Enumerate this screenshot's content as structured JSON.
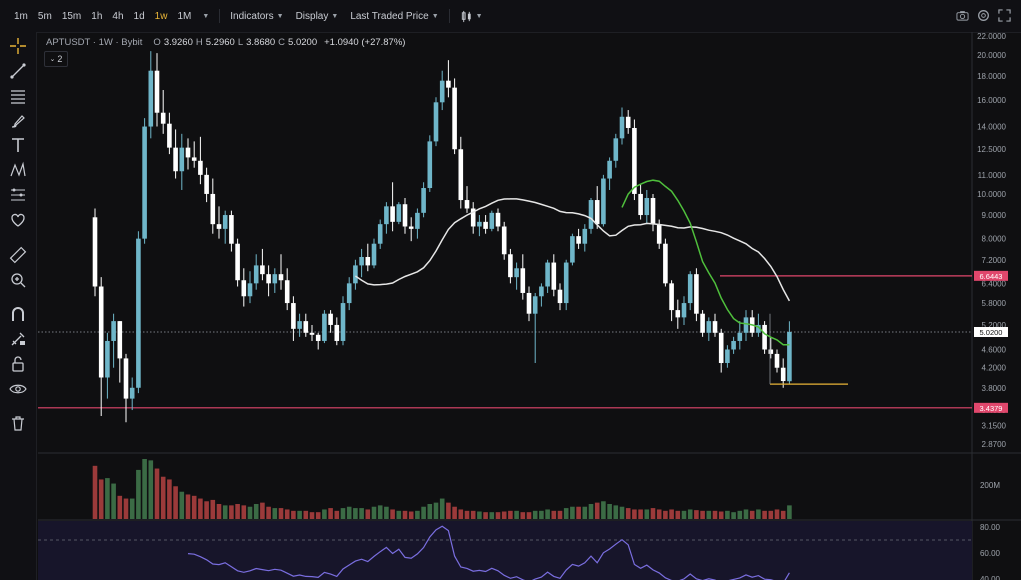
{
  "toolbar_top": {
    "timeframes": [
      "1m",
      "5m",
      "15m",
      "1h",
      "4h",
      "1d",
      "1w",
      "1M"
    ],
    "active_timeframe": "1w",
    "indicators_label": "Indicators",
    "display_label": "Display",
    "price_mode_label": "Last Traded Price"
  },
  "legend": {
    "symbol": "APTUSDT · 1W · Bybit",
    "open_key": "O",
    "open": "3.9260",
    "high_key": "H",
    "high": "5.2960",
    "low_key": "L",
    "low": "3.8680",
    "close_key": "C",
    "close": "5.0200",
    "change": "+1.0940 (+27.87%)",
    "collapsed_count": "2"
  },
  "colors": {
    "background": "#0f0f11",
    "up": "#6fb6c9",
    "down": "#ffffff",
    "vol_up": "#3b6b45",
    "vol_down": "#9b3a3a",
    "level_line": "#e0476c",
    "ma_fast": "#4fbf3c",
    "ma_slow": "#e6e6e6",
    "rsi": "#7a6ee0",
    "accent": "#e8b437"
  },
  "price_axis": {
    "labels": [
      "22.0000",
      "20.0000",
      "18.0000",
      "16.0000",
      "14.0000",
      "12.5000",
      "11.0000",
      "10.0000",
      "9.0000",
      "8.0000",
      "7.2000",
      "6.4000",
      "5.8000",
      "5.2000",
      "4.6000",
      "4.2000",
      "3.8000",
      "3.4000",
      "3.1500",
      "2.8700"
    ],
    "current_price": "5.0200",
    "level_upper": "6.6443",
    "level_lower": "3.4379"
  },
  "volume_axis": {
    "label": "200M"
  },
  "rsi_axis": {
    "labels": [
      "80.00",
      "60.00",
      "40.00"
    ]
  },
  "chart_data": {
    "type": "candlestick",
    "symbol": "APTUSDT",
    "interval": "1W",
    "scale": "log",
    "candles": [
      [
        8.9,
        9.3,
        6.0,
        6.3
      ],
      [
        6.3,
        6.6,
        3.3,
        4.0
      ],
      [
        4.0,
        5.0,
        3.6,
        4.8
      ],
      [
        4.8,
        5.5,
        4.2,
        5.3
      ],
      [
        5.3,
        5.3,
        3.9,
        4.4
      ],
      [
        4.4,
        4.5,
        3.2,
        3.6
      ],
      [
        3.6,
        4.0,
        3.4,
        3.8
      ],
      [
        3.8,
        8.3,
        3.7,
        8.0
      ],
      [
        8.0,
        14.6,
        7.8,
        14.0
      ],
      [
        14.0,
        20.4,
        13.2,
        18.5
      ],
      [
        18.5,
        20.2,
        14.0,
        15.0
      ],
      [
        15.0,
        16.8,
        13.5,
        14.2
      ],
      [
        14.2,
        15.0,
        12.2,
        12.6
      ],
      [
        12.6,
        13.8,
        10.8,
        11.2
      ],
      [
        11.2,
        13.5,
        10.2,
        12.6
      ],
      [
        12.6,
        13.2,
        11.3,
        12.0
      ],
      [
        12.0,
        13.0,
        11.4,
        11.8
      ],
      [
        11.8,
        13.3,
        10.5,
        11.0
      ],
      [
        11.0,
        11.4,
        9.6,
        10.0
      ],
      [
        10.0,
        10.8,
        8.2,
        8.6
      ],
      [
        8.6,
        9.4,
        8.0,
        8.4
      ],
      [
        8.4,
        9.2,
        7.8,
        9.0
      ],
      [
        9.0,
        9.2,
        7.5,
        7.8
      ],
      [
        7.8,
        8.0,
        6.3,
        6.5
      ],
      [
        6.5,
        6.9,
        5.7,
        6.0
      ],
      [
        6.0,
        6.8,
        5.8,
        6.4
      ],
      [
        6.4,
        7.4,
        6.2,
        7.0
      ],
      [
        7.0,
        7.6,
        6.5,
        6.7
      ],
      [
        6.7,
        7.0,
        6.0,
        6.4
      ],
      [
        6.4,
        6.9,
        6.1,
        6.7
      ],
      [
        6.7,
        7.4,
        6.2,
        6.5
      ],
      [
        6.5,
        6.9,
        5.6,
        5.8
      ],
      [
        5.8,
        6.0,
        4.8,
        5.1
      ],
      [
        5.1,
        5.5,
        4.9,
        5.3
      ],
      [
        5.3,
        5.5,
        4.9,
        5.0
      ],
      [
        5.0,
        5.2,
        4.8,
        4.95
      ],
      [
        4.95,
        5.0,
        4.6,
        4.8
      ],
      [
        4.8,
        5.6,
        4.75,
        5.5
      ],
      [
        5.5,
        5.6,
        5.0,
        5.2
      ],
      [
        5.2,
        5.4,
        4.7,
        4.8
      ],
      [
        4.8,
        6.0,
        4.7,
        5.8
      ],
      [
        5.8,
        6.6,
        5.6,
        6.4
      ],
      [
        6.4,
        7.2,
        6.2,
        7.0
      ],
      [
        7.0,
        7.6,
        6.6,
        7.3
      ],
      [
        7.3,
        7.8,
        6.8,
        7.0
      ],
      [
        7.0,
        8.0,
        6.9,
        7.8
      ],
      [
        7.8,
        8.8,
        7.6,
        8.6
      ],
      [
        8.6,
        9.6,
        8.2,
        9.4
      ],
      [
        9.4,
        10.6,
        8.3,
        8.7
      ],
      [
        8.7,
        9.6,
        8.6,
        9.5
      ],
      [
        9.5,
        9.8,
        8.2,
        8.5
      ],
      [
        8.5,
        8.9,
        7.9,
        8.4
      ],
      [
        8.4,
        9.3,
        8.0,
        9.1
      ],
      [
        9.1,
        10.6,
        8.9,
        10.3
      ],
      [
        10.3,
        13.4,
        10.1,
        13.0
      ],
      [
        13.0,
        16.2,
        12.7,
        15.8
      ],
      [
        15.8,
        18.5,
        15.2,
        17.6
      ],
      [
        17.6,
        19.5,
        16.2,
        17.0
      ],
      [
        17.0,
        17.8,
        12.2,
        12.5
      ],
      [
        12.5,
        13.3,
        9.3,
        9.7
      ],
      [
        9.7,
        10.4,
        9.1,
        9.3
      ],
      [
        9.3,
        9.6,
        8.2,
        8.5
      ],
      [
        8.5,
        9.0,
        8.1,
        8.7
      ],
      [
        8.7,
        9.0,
        8.2,
        8.4
      ],
      [
        8.4,
        9.2,
        8.3,
        9.1
      ],
      [
        9.1,
        9.3,
        8.3,
        8.5
      ],
      [
        8.5,
        8.7,
        7.2,
        7.4
      ],
      [
        7.4,
        7.6,
        6.4,
        6.6
      ],
      [
        6.6,
        7.1,
        6.2,
        6.9
      ],
      [
        6.9,
        7.4,
        5.9,
        6.1
      ],
      [
        6.1,
        6.3,
        5.3,
        5.5
      ],
      [
        5.5,
        6.1,
        4.3,
        6.0
      ],
      [
        6.0,
        6.4,
        5.7,
        6.3
      ],
      [
        6.3,
        7.2,
        6.1,
        7.1
      ],
      [
        7.1,
        7.4,
        6.0,
        6.2
      ],
      [
        6.2,
        6.4,
        5.6,
        5.8
      ],
      [
        5.8,
        7.2,
        5.6,
        7.1
      ],
      [
        7.1,
        8.2,
        7.0,
        8.1
      ],
      [
        8.1,
        8.4,
        7.6,
        7.8
      ],
      [
        7.8,
        8.6,
        7.5,
        8.4
      ],
      [
        8.4,
        9.8,
        8.2,
        9.7
      ],
      [
        9.7,
        10.4,
        8.4,
        8.6
      ],
      [
        8.6,
        11.0,
        8.5,
        10.8
      ],
      [
        10.8,
        12.0,
        10.2,
        11.8
      ],
      [
        11.8,
        13.5,
        11.4,
        13.2
      ],
      [
        13.2,
        15.4,
        12.8,
        14.7
      ],
      [
        14.7,
        15.2,
        13.5,
        13.9
      ],
      [
        13.9,
        14.5,
        9.7,
        10.0
      ],
      [
        10.0,
        10.5,
        8.8,
        9.0
      ],
      [
        9.0,
        10.2,
        8.6,
        9.8
      ],
      [
        9.8,
        10.0,
        8.3,
        8.6
      ],
      [
        8.6,
        8.8,
        7.6,
        7.8
      ],
      [
        7.8,
        8.0,
        6.3,
        6.4
      ],
      [
        6.4,
        6.5,
        5.3,
        5.6
      ],
      [
        5.6,
        5.9,
        5.1,
        5.4
      ],
      [
        5.4,
        6.0,
        5.2,
        5.8
      ],
      [
        5.8,
        6.8,
        5.6,
        6.7
      ],
      [
        6.7,
        6.9,
        5.3,
        5.5
      ],
      [
        5.5,
        5.6,
        4.9,
        5.0
      ],
      [
        5.0,
        5.4,
        4.8,
        5.3
      ],
      [
        5.3,
        5.5,
        4.9,
        5.0
      ],
      [
        5.0,
        5.1,
        4.1,
        4.3
      ],
      [
        4.3,
        4.7,
        4.2,
        4.6
      ],
      [
        4.6,
        4.9,
        4.5,
        4.8
      ],
      [
        4.8,
        5.3,
        4.6,
        5.0
      ],
      [
        5.0,
        5.6,
        4.8,
        5.4
      ],
      [
        5.4,
        5.6,
        4.9,
        5.0
      ],
      [
        5.0,
        5.5,
        4.9,
        5.2
      ],
      [
        5.2,
        5.3,
        4.5,
        4.6
      ],
      [
        4.6,
        4.9,
        4.4,
        4.5
      ],
      [
        4.5,
        4.6,
        4.1,
        4.2
      ],
      [
        4.2,
        4.4,
        3.8,
        3.93
      ],
      [
        3.926,
        5.296,
        3.868,
        5.02
      ]
    ],
    "volume": [
      78,
      58,
      60,
      52,
      34,
      30,
      30,
      72,
      88,
      86,
      74,
      62,
      58,
      48,
      40,
      36,
      34,
      30,
      26,
      28,
      22,
      20,
      20,
      22,
      20,
      18,
      22,
      24,
      18,
      16,
      16,
      14,
      12,
      12,
      12,
      10,
      10,
      14,
      16,
      12,
      16,
      18,
      16,
      16,
      14,
      18,
      20,
      18,
      14,
      12,
      12,
      11,
      12,
      18,
      22,
      24,
      30,
      24,
      18,
      14,
      12,
      12,
      11,
      10,
      10,
      10,
      11,
      12,
      12,
      10,
      10,
      12,
      12,
      14,
      12,
      12,
      16,
      18,
      18,
      18,
      22,
      24,
      26,
      22,
      20,
      18,
      16,
      14,
      14,
      14,
      16,
      14,
      12,
      14,
      12,
      12,
      14,
      13,
      12,
      12,
      12,
      11,
      12,
      10,
      12,
      14,
      12,
      14,
      12,
      12,
      14,
      12,
      20
    ],
    "levels": [
      6.6443,
      3.4379
    ],
    "current_price": 5.02,
    "rsi_visible_levels": [
      80,
      60,
      40
    ]
  }
}
